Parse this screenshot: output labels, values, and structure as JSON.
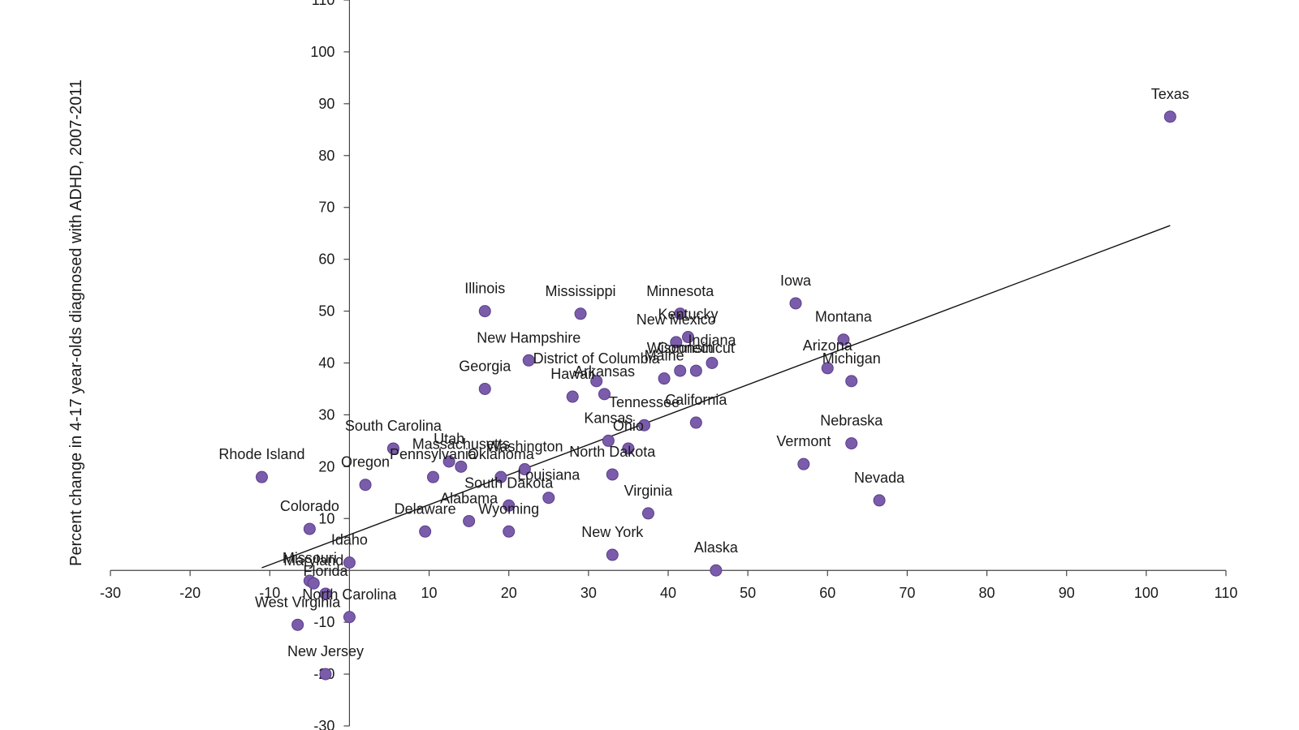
{
  "chart_data": {
    "type": "scatter",
    "title": "",
    "xlabel": "",
    "ylabel": "Percent change in 4-17 year-olds diagnosed with ADHD, 2007-2011",
    "xlim": [
      -30,
      110
    ],
    "ylim": [
      -30,
      110
    ],
    "x_ticks": [
      -30,
      -20,
      -10,
      10,
      20,
      30,
      40,
      50,
      60,
      70,
      80,
      90,
      100,
      110
    ],
    "y_ticks": [
      -30,
      -20,
      -10,
      10,
      20,
      30,
      40,
      50,
      60,
      70,
      80,
      90,
      100,
      110
    ],
    "grid": false,
    "legend": "none",
    "marker_color": "#7b5cab",
    "trendline": {
      "x": [
        -11,
        103
      ],
      "y": [
        0.5,
        66.5
      ]
    },
    "points": [
      {
        "label": "Texas",
        "x": 103,
        "y": 87.5
      },
      {
        "label": "Iowa",
        "x": 56,
        "y": 51.5
      },
      {
        "label": "Montana",
        "x": 62,
        "y": 44.5
      },
      {
        "label": "Arizona",
        "x": 60,
        "y": 39
      },
      {
        "label": "Michigan",
        "x": 63,
        "y": 36.5
      },
      {
        "label": "Nebraska",
        "x": 63,
        "y": 24.5
      },
      {
        "label": "Vermont",
        "x": 57,
        "y": 20.5
      },
      {
        "label": "Nevada",
        "x": 66.5,
        "y": 13.5
      },
      {
        "label": "Illinois",
        "x": 17,
        "y": 50
      },
      {
        "label": "Mississippi",
        "x": 29,
        "y": 49.5
      },
      {
        "label": "Minnesota",
        "x": 41.5,
        "y": 49.5
      },
      {
        "label": "Kentucky",
        "x": 42.5,
        "y": 45
      },
      {
        "label": "New Mexico",
        "x": 41,
        "y": 44
      },
      {
        "label": "Indiana",
        "x": 45.5,
        "y": 40
      },
      {
        "label": "Connecticut",
        "x": 43.5,
        "y": 38.5
      },
      {
        "label": "Wisconsin",
        "x": 41.5,
        "y": 38.5
      },
      {
        "label": "Maine",
        "x": 39.5,
        "y": 37
      },
      {
        "label": "New Hampshire",
        "x": 22.5,
        "y": 40.5
      },
      {
        "label": "District of Columbia",
        "x": 31,
        "y": 36.5
      },
      {
        "label": "Arkansas",
        "x": 32,
        "y": 34
      },
      {
        "label": "Hawaii",
        "x": 28,
        "y": 33.5
      },
      {
        "label": "Georgia",
        "x": 17,
        "y": 35
      },
      {
        "label": "California",
        "x": 43.5,
        "y": 28.5
      },
      {
        "label": "Tennessee",
        "x": 37,
        "y": 28
      },
      {
        "label": "Kansas",
        "x": 32.5,
        "y": 25
      },
      {
        "label": "Ohio",
        "x": 35,
        "y": 23.5
      },
      {
        "label": "North Dakota",
        "x": 33,
        "y": 18.5
      },
      {
        "label": "South Carolina",
        "x": 5.5,
        "y": 23.5
      },
      {
        "label": "Utah",
        "x": 12.5,
        "y": 21
      },
      {
        "label": "Massachusetts",
        "x": 14,
        "y": 20
      },
      {
        "label": "Washington",
        "x": 22,
        "y": 19.5
      },
      {
        "label": "Pennsylvania",
        "x": 10.5,
        "y": 18
      },
      {
        "label": "Oklahoma",
        "x": 19,
        "y": 18
      },
      {
        "label": "Louisiana",
        "x": 25,
        "y": 14
      },
      {
        "label": "South Dakota",
        "x": 20,
        "y": 12.5
      },
      {
        "label": "Virginia",
        "x": 37.5,
        "y": 11
      },
      {
        "label": "Alabama",
        "x": 15,
        "y": 9.5
      },
      {
        "label": "Delaware",
        "x": 9.5,
        "y": 7.5
      },
      {
        "label": "Wyoming",
        "x": 20,
        "y": 7.5
      },
      {
        "label": "New York",
        "x": 33,
        "y": 3
      },
      {
        "label": "Alaska",
        "x": 46,
        "y": 0
      },
      {
        "label": "Rhode Island",
        "x": -11,
        "y": 18
      },
      {
        "label": "Oregon",
        "x": 2,
        "y": 16.5
      },
      {
        "label": "Colorado",
        "x": -5,
        "y": 8
      },
      {
        "label": "Idaho",
        "x": 0,
        "y": 1.5
      },
      {
        "label": "Missouri",
        "x": -5,
        "y": -2
      },
      {
        "label": "Maryland",
        "x": -4.5,
        "y": -2.5
      },
      {
        "label": "Florida",
        "x": -3,
        "y": -4.5
      },
      {
        "label": "North Carolina",
        "x": 0,
        "y": -9
      },
      {
        "label": "West Virginia",
        "x": -6.5,
        "y": -10.5
      },
      {
        "label": "New Jersey",
        "x": -3,
        "y": -20
      }
    ]
  }
}
